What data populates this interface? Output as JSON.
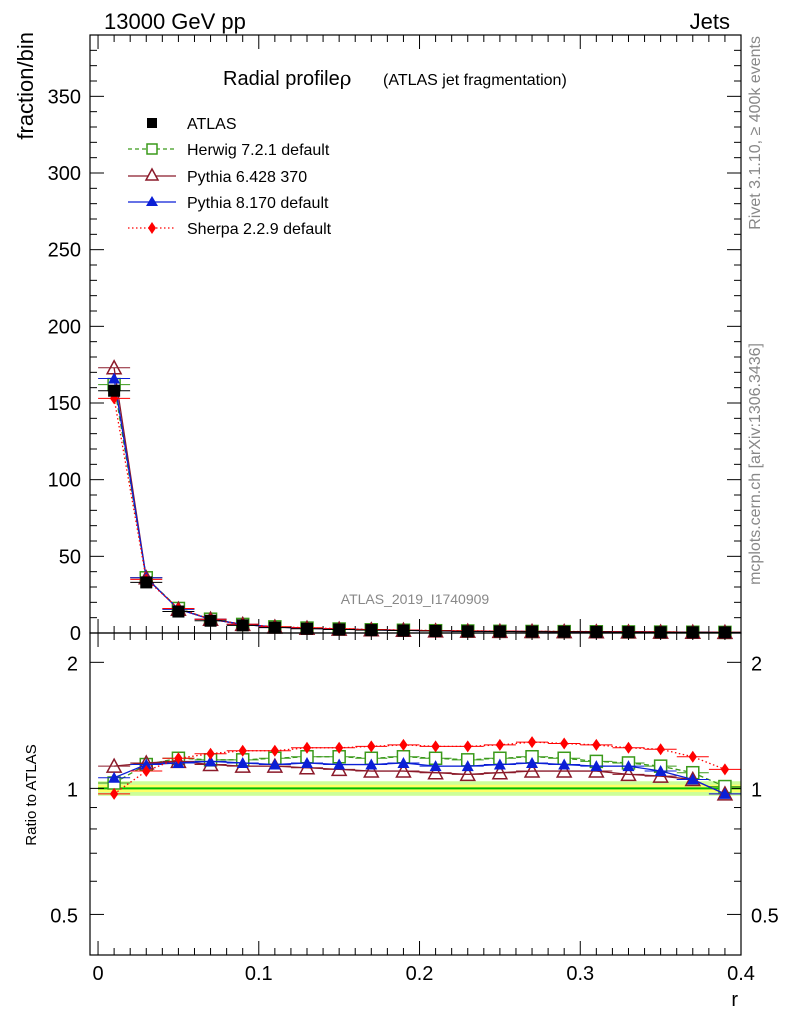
{
  "header": {
    "left": "13000 GeV pp",
    "right": "Jets"
  },
  "side_text": {
    "rivet": "Rivet 3.1.10, ≥ 400k events",
    "mcplots": "mcplots.cern.ch [arXiv:1306.3436]"
  },
  "chart_data": [
    {
      "type": "line",
      "panel": "main",
      "title": "Radial profile",
      "title_symbol": "ρ",
      "subtitle": "(ATLAS jet fragmentation)",
      "watermark": "ATLAS_2019_I1740909",
      "ylabel": "fraction/bin",
      "xlabel": "",
      "ylim": [
        0,
        390
      ],
      "xlim": [
        -0.005,
        0.4
      ],
      "yticks": [
        0,
        50,
        100,
        150,
        200,
        250,
        300,
        350
      ],
      "ytick_labels": [
        "0",
        "50",
        "100",
        "150",
        "200",
        "250",
        "300",
        "350"
      ],
      "x": [
        0.01,
        0.03,
        0.05,
        0.07,
        0.09,
        0.11,
        0.13,
        0.15,
        0.17,
        0.19,
        0.21,
        0.23,
        0.25,
        0.27,
        0.29,
        0.31,
        0.33,
        0.35,
        0.37,
        0.39
      ],
      "series": [
        {
          "name": "ATLAS",
          "color": "#000000",
          "marker": "square-filled",
          "line": "none",
          "values": [
            158,
            33,
            14,
            8,
            5,
            3.5,
            2.8,
            2.3,
            1.9,
            1.6,
            1.3,
            1.1,
            1.0,
            0.9,
            0.8,
            0.7,
            0.6,
            0.5,
            0.45,
            0.4
          ]
        },
        {
          "name": "Herwig 7.2.1 default",
          "color": "#3a9a1a",
          "marker": "square-open",
          "line": "dashed",
          "values": [
            162,
            36,
            16,
            9,
            5.6,
            4.0,
            3.2,
            2.6,
            2.1,
            1.8,
            1.5,
            1.3,
            1.1,
            1.0,
            0.9,
            0.8,
            0.7,
            0.6,
            0.5,
            0.4
          ]
        },
        {
          "name": "Pythia 6.428 370",
          "color": "#8b1a2a",
          "marker": "triangle-open",
          "line": "solid",
          "values": [
            173,
            36,
            15.5,
            9,
            5.6,
            3.9,
            3.1,
            2.5,
            2.1,
            1.8,
            1.4,
            1.2,
            1.1,
            1.0,
            0.9,
            0.8,
            0.7,
            0.6,
            0.5,
            0.4
          ]
        },
        {
          "name": "Pythia 8.170 default",
          "color": "#0b1fd6",
          "marker": "triangle-filled",
          "line": "solid",
          "values": [
            166,
            36,
            15.5,
            9,
            5.6,
            3.9,
            3.1,
            2.6,
            2.1,
            1.8,
            1.4,
            1.2,
            1.1,
            1.0,
            0.9,
            0.8,
            0.7,
            0.6,
            0.5,
            0.4
          ]
        },
        {
          "name": "Sherpa 2.2.9 default",
          "color": "#ff0000",
          "marker": "diamond-filled",
          "line": "dotted",
          "values": [
            153,
            35,
            16,
            9,
            5.7,
            4.1,
            3.4,
            2.8,
            2.3,
            1.9,
            1.6,
            1.4,
            1.2,
            1.1,
            1.0,
            0.9,
            0.8,
            0.7,
            0.5,
            0.45
          ]
        }
      ]
    },
    {
      "type": "line",
      "panel": "ratio",
      "ylabel": "Ratio to ATLAS",
      "xlabel": "r",
      "ylim": [
        0.4,
        2.35
      ],
      "yscale": "log",
      "xlim": [
        -0.005,
        0.4
      ],
      "yticks": [
        0.5,
        1,
        2
      ],
      "ytick_labels": [
        "0.5",
        "1",
        "2"
      ],
      "xticks": [
        0,
        0.1,
        0.2,
        0.3,
        0.4
      ],
      "xtick_labels": [
        "0",
        "0.1",
        "0.2",
        "0.3",
        "0.4"
      ],
      "reference_band": {
        "inner": [
          0.98,
          1.02
        ],
        "outer": [
          0.96,
          1.04
        ],
        "inner_color": "#ffff66",
        "outer_color": "#ccff99",
        "line_color": "#00bb00"
      },
      "x": [
        0.01,
        0.03,
        0.05,
        0.07,
        0.09,
        0.11,
        0.13,
        0.15,
        0.17,
        0.19,
        0.21,
        0.23,
        0.25,
        0.27,
        0.29,
        0.31,
        0.33,
        0.35,
        0.37,
        0.39
      ],
      "series": [
        {
          "name": "Herwig 7.2.1 default",
          "color": "#3a9a1a",
          "marker": "square-open",
          "line": "dashed",
          "values": [
            1.03,
            1.14,
            1.18,
            1.17,
            1.17,
            1.18,
            1.19,
            1.19,
            1.18,
            1.19,
            1.18,
            1.17,
            1.18,
            1.19,
            1.18,
            1.16,
            1.15,
            1.13,
            1.09,
            1.01
          ]
        },
        {
          "name": "Pythia 6.428 370",
          "color": "#8b1a2a",
          "marker": "triangle-open",
          "line": "solid",
          "values": [
            1.13,
            1.15,
            1.16,
            1.14,
            1.13,
            1.13,
            1.12,
            1.11,
            1.1,
            1.1,
            1.09,
            1.08,
            1.09,
            1.1,
            1.1,
            1.1,
            1.08,
            1.07,
            1.05,
            0.97
          ]
        },
        {
          "name": "Pythia 8.170 default",
          "color": "#0b1fd6",
          "marker": "triangle-filled",
          "line": "solid",
          "values": [
            1.06,
            1.14,
            1.15,
            1.16,
            1.15,
            1.14,
            1.15,
            1.14,
            1.14,
            1.15,
            1.13,
            1.13,
            1.14,
            1.15,
            1.14,
            1.13,
            1.13,
            1.1,
            1.05,
            0.97
          ]
        },
        {
          "name": "Sherpa 2.2.9 default",
          "color": "#ff0000",
          "marker": "diamond-filled",
          "line": "dotted",
          "values": [
            0.97,
            1.1,
            1.18,
            1.21,
            1.23,
            1.23,
            1.25,
            1.25,
            1.26,
            1.27,
            1.26,
            1.26,
            1.27,
            1.29,
            1.28,
            1.27,
            1.25,
            1.24,
            1.19,
            1.11
          ]
        }
      ]
    }
  ]
}
